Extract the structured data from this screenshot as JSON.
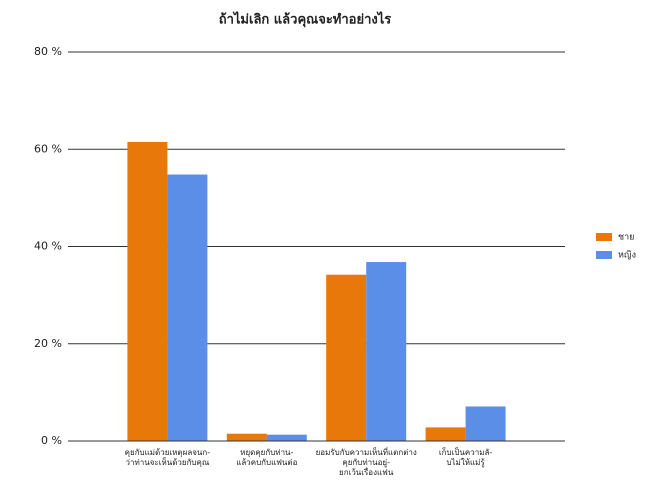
{
  "chart_data": {
    "type": "bar",
    "title": "ถ้าไม่เลิก แล้วคุณจะทำอย่างไร",
    "categories": [
      "คุยกับแม่ด้วยเหตุผลจนก-\nว่าท่านจะเห็นด้วยกับคุณ",
      "หยุดคุยกับท่าน-\nแล้วคบกับแฟนต่อ",
      "ยอมรับกับความเห็นที่แตกต่าง\nคุยกับท่านอยู่-\nยกเว้นเรื่องแฟน",
      "เก็บเป็นความลั-\nบไม่ให้แม่รู้"
    ],
    "series": [
      {
        "name": "ชาย",
        "color": "#e8780a",
        "values": [
          61.5,
          1.5,
          34.2,
          2.8
        ]
      },
      {
        "name": "หญิง",
        "color": "#5b8ee6",
        "values": [
          54.8,
          1.3,
          36.8,
          7.1
        ]
      }
    ],
    "ylim": [
      0,
      80
    ],
    "yticks": [
      {
        "value": 0,
        "label": "0 %"
      },
      {
        "value": 20,
        "label": "20 %"
      },
      {
        "value": 40,
        "label": "40 %"
      },
      {
        "value": 60,
        "label": "60 %"
      },
      {
        "value": 80,
        "label": "80 %"
      }
    ],
    "grid": true,
    "legend": "right"
  }
}
